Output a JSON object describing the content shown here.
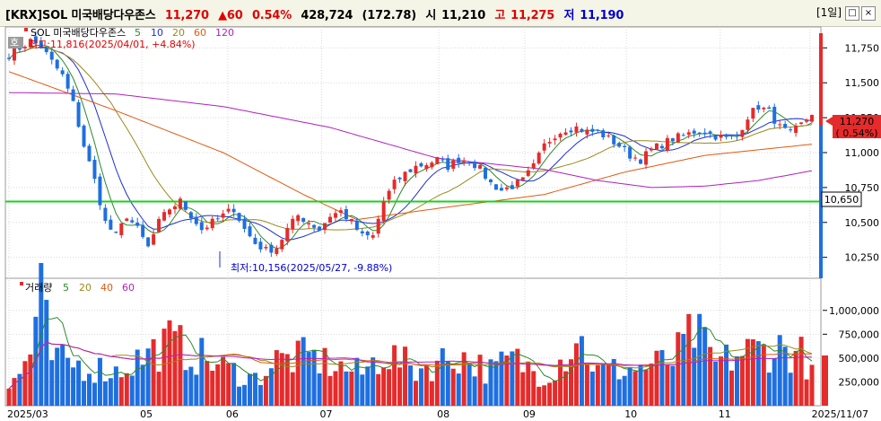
{
  "header": {
    "ticker": "[KRX]SOL 미국배당다우존스",
    "price": "11,270",
    "change": "▲60",
    "change_pct": "0.54%",
    "volume": "428,724",
    "volume_pct": "(172.78)",
    "open_label": "시",
    "open": "11,210",
    "high_label": "고",
    "high": "11,275",
    "low_label": "저",
    "low": "11,190",
    "period_btn": "[1일]",
    "restore_icon": "□",
    "close_icon": "×"
  },
  "price_legend": {
    "icon_label": "호",
    "title": "SOL 미국배당다우존스",
    "ma": [
      "5",
      "10",
      "20",
      "60",
      "120"
    ],
    "max_note": "최고:11,816(2025/04/01, +4.84%)",
    "min_note": "최저:10,156(2025/05/27, -9.88%)"
  },
  "volume_legend": {
    "title": "거래량",
    "ma": [
      "5",
      "20",
      "40",
      "60"
    ]
  },
  "colors": {
    "up": "#e52b2b",
    "down": "#1e6fe0",
    "ma5": "#2b8a2b",
    "ma10": "#1f2fd0",
    "ma20": "#9b8a1e",
    "ma60": "#e05a10",
    "ma120": "#b020c0",
    "hline": "#19d219",
    "last_line": "#e52b2b"
  },
  "chart_data": [
    {
      "type": "candlestick",
      "title": "SOL 미국배당다우존스",
      "x_ticks": [
        "2025/03",
        "05",
        "06",
        "07",
        "08",
        "09",
        "10",
        "11",
        "2025/11/07"
      ],
      "y_ticks": [
        "11,750",
        "11,500",
        "11,250",
        "11,000",
        "10,750",
        "10,500",
        "10,250"
      ],
      "ylim": [
        10100,
        11900
      ],
      "current_price": "11,270",
      "current_pct": "( 0.54%)",
      "horizontal_line": "10,650",
      "max": {
        "value": 11816,
        "date": "2025/04/01"
      },
      "min": {
        "value": 10156,
        "date": "2025/05/27"
      },
      "close_keypoints": [
        [
          0,
          11700
        ],
        [
          4,
          11800
        ],
        [
          6,
          11760
        ],
        [
          8,
          11650
        ],
        [
          10,
          11550
        ],
        [
          12,
          11350
        ],
        [
          14,
          11050
        ],
        [
          16,
          10800
        ],
        [
          18,
          10500
        ],
        [
          20,
          10400
        ],
        [
          22,
          10550
        ],
        [
          24,
          10450
        ],
        [
          26,
          10320
        ],
        [
          28,
          10500
        ],
        [
          30,
          10600
        ],
        [
          32,
          10650
        ],
        [
          34,
          10550
        ],
        [
          36,
          10450
        ],
        [
          38,
          10500
        ],
        [
          40,
          10550
        ],
        [
          42,
          10600
        ],
        [
          44,
          10450
        ],
        [
          46,
          10350
        ],
        [
          48,
          10300
        ],
        [
          50,
          10320
        ],
        [
          52,
          10450
        ],
        [
          54,
          10550
        ],
        [
          56,
          10500
        ],
        [
          58,
          10450
        ],
        [
          60,
          10550
        ],
        [
          62,
          10580
        ],
        [
          64,
          10500
        ],
        [
          66,
          10400
        ],
        [
          68,
          10400
        ],
        [
          70,
          10650
        ],
        [
          72,
          10780
        ],
        [
          74,
          10850
        ],
        [
          76,
          10900
        ],
        [
          78,
          10920
        ],
        [
          80,
          10950
        ],
        [
          82,
          10900
        ],
        [
          84,
          10950
        ],
        [
          86,
          10950
        ],
        [
          88,
          10880
        ],
        [
          90,
          10780
        ],
        [
          92,
          10730
        ],
        [
          94,
          10760
        ],
        [
          96,
          10800
        ],
        [
          98,
          10900
        ],
        [
          100,
          11050
        ],
        [
          102,
          11130
        ],
        [
          104,
          11170
        ],
        [
          106,
          11180
        ],
        [
          108,
          11150
        ],
        [
          110,
          11150
        ],
        [
          112,
          11100
        ],
        [
          114,
          11050
        ],
        [
          116,
          10980
        ],
        [
          118,
          10950
        ],
        [
          120,
          11020
        ],
        [
          122,
          11060
        ],
        [
          124,
          11100
        ],
        [
          126,
          11120
        ],
        [
          128,
          11150
        ],
        [
          130,
          11150
        ],
        [
          132,
          11120
        ],
        [
          134,
          11100
        ],
        [
          136,
          11120
        ],
        [
          138,
          11260
        ],
        [
          140,
          11330
        ],
        [
          142,
          11290
        ],
        [
          144,
          11180
        ],
        [
          146,
          11130
        ],
        [
          148,
          11200
        ],
        [
          150,
          11270
        ]
      ],
      "ma120_keypoints": [
        [
          0,
          11430
        ],
        [
          20,
          11420
        ],
        [
          40,
          11330
        ],
        [
          60,
          11180
        ],
        [
          80,
          10960
        ],
        [
          100,
          10880
        ],
        [
          110,
          10800
        ],
        [
          120,
          10750
        ],
        [
          130,
          10760
        ],
        [
          140,
          10800
        ],
        [
          150,
          10870
        ]
      ],
      "ma60_keypoints": [
        [
          0,
          11580
        ],
        [
          20,
          11300
        ],
        [
          40,
          11000
        ],
        [
          55,
          10700
        ],
        [
          65,
          10520
        ],
        [
          80,
          10600
        ],
        [
          100,
          10700
        ],
        [
          115,
          10860
        ],
        [
          130,
          10980
        ],
        [
          150,
          11060
        ]
      ]
    },
    {
      "type": "bar",
      "title": "거래량",
      "y_ticks": [
        "1,000,000",
        "750,000",
        "500,000",
        "250,000"
      ],
      "ylim": [
        0,
        1280000
      ],
      "last_volume": 428724,
      "volume_keypoints": [
        [
          0,
          200000
        ],
        [
          2,
          350000
        ],
        [
          4,
          600000
        ],
        [
          6,
          1180000
        ],
        [
          8,
          520000
        ],
        [
          10,
          480000
        ],
        [
          20,
          380000
        ],
        [
          30,
          700000
        ],
        [
          40,
          420000
        ],
        [
          46,
          300000
        ],
        [
          50,
          500000
        ],
        [
          56,
          540000
        ],
        [
          62,
          420000
        ],
        [
          66,
          360000
        ],
        [
          70,
          580000
        ],
        [
          76,
          400000
        ],
        [
          84,
          560000
        ],
        [
          90,
          380000
        ],
        [
          94,
          520000
        ],
        [
          100,
          330000
        ],
        [
          104,
          560000
        ],
        [
          106,
          780000
        ],
        [
          110,
          380000
        ],
        [
          118,
          420000
        ],
        [
          124,
          500000
        ],
        [
          128,
          820000
        ],
        [
          132,
          460000
        ],
        [
          138,
          600000
        ],
        [
          144,
          640000
        ],
        [
          148,
          560000
        ],
        [
          150,
          428724
        ]
      ]
    }
  ]
}
